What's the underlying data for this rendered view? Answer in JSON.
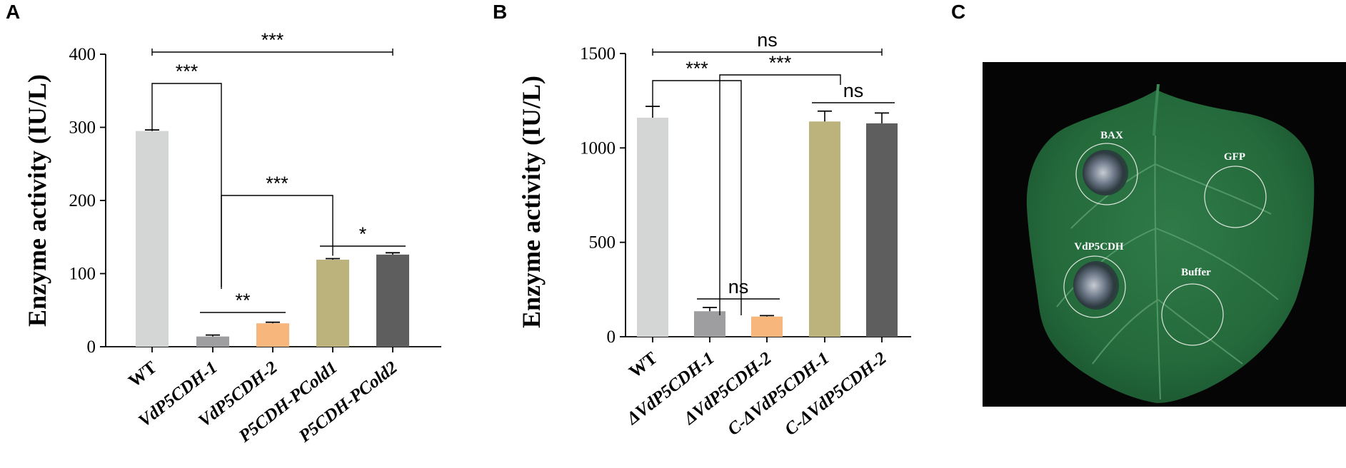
{
  "figure": {
    "panel_a_letter": "A",
    "panel_b_letter": "B",
    "panel_c_letter": "C"
  },
  "chart_data": [
    {
      "panel": "A",
      "type": "bar",
      "title": "",
      "xlabel": "",
      "ylabel": "Enzyme activity (IU/L)",
      "ylim": [
        0,
        400
      ],
      "yticks": [
        "0",
        "100",
        "200",
        "300",
        "400"
      ],
      "categories": [
        "WT",
        "VdP5CDH-1",
        "VdP5CDH-2",
        "P5CDH-PCold1",
        "P5CDH-PCold2"
      ],
      "italic": [
        false,
        true,
        true,
        true,
        true
      ],
      "values": [
        295,
        14,
        32,
        119,
        126
      ],
      "errors": [
        1.5,
        2,
        1.5,
        1.5,
        2.5
      ],
      "colors": [
        "#d4d5d5",
        "#9e9ea1",
        "#f7b77c",
        "#bcb27c",
        "#5e5e5e"
      ],
      "significance": [
        {
          "from": 0,
          "to": 4,
          "label": "***"
        },
        {
          "from": 0,
          "to": 1,
          "label": "***"
        },
        {
          "from": 1,
          "to": 3,
          "label": "***"
        },
        {
          "from": 1,
          "to": 2,
          "label": "**"
        },
        {
          "from": 3,
          "to": 4,
          "label": "*"
        }
      ]
    },
    {
      "panel": "B",
      "type": "bar",
      "title": "",
      "xlabel": "",
      "ylabel": "Enzyme activity (IU/L)",
      "ylim": [
        0,
        1500
      ],
      "yticks": [
        "0",
        "500",
        "1000",
        "1500"
      ],
      "categories": [
        "WT",
        "ΔVdP5CDH-1",
        "ΔVdP5CDH-2",
        "C-ΔVdP5CDH-1",
        "C-ΔVdP5CDH-2"
      ],
      "italic": [
        false,
        true,
        true,
        true,
        true
      ],
      "values": [
        1160,
        135,
        107,
        1140,
        1130
      ],
      "errors": [
        60,
        20,
        5,
        55,
        55
      ],
      "colors": [
        "#d4d5d5",
        "#9e9ea1",
        "#f7b77c",
        "#bcb27c",
        "#5e5e5e"
      ],
      "significance": [
        {
          "from": 0,
          "to": 4,
          "label": "ns"
        },
        {
          "from": 0,
          "to": 1,
          "label": "***"
        },
        {
          "from": 1,
          "to": 3,
          "label": "***"
        },
        {
          "from": 1,
          "to": 2,
          "label": "ns"
        },
        {
          "from": 3,
          "to": 4,
          "label": "ns"
        }
      ]
    }
  ],
  "leaf_photo": {
    "spots": [
      "BAX",
      "GFP",
      "VdP5CDH",
      "Buffer"
    ]
  }
}
